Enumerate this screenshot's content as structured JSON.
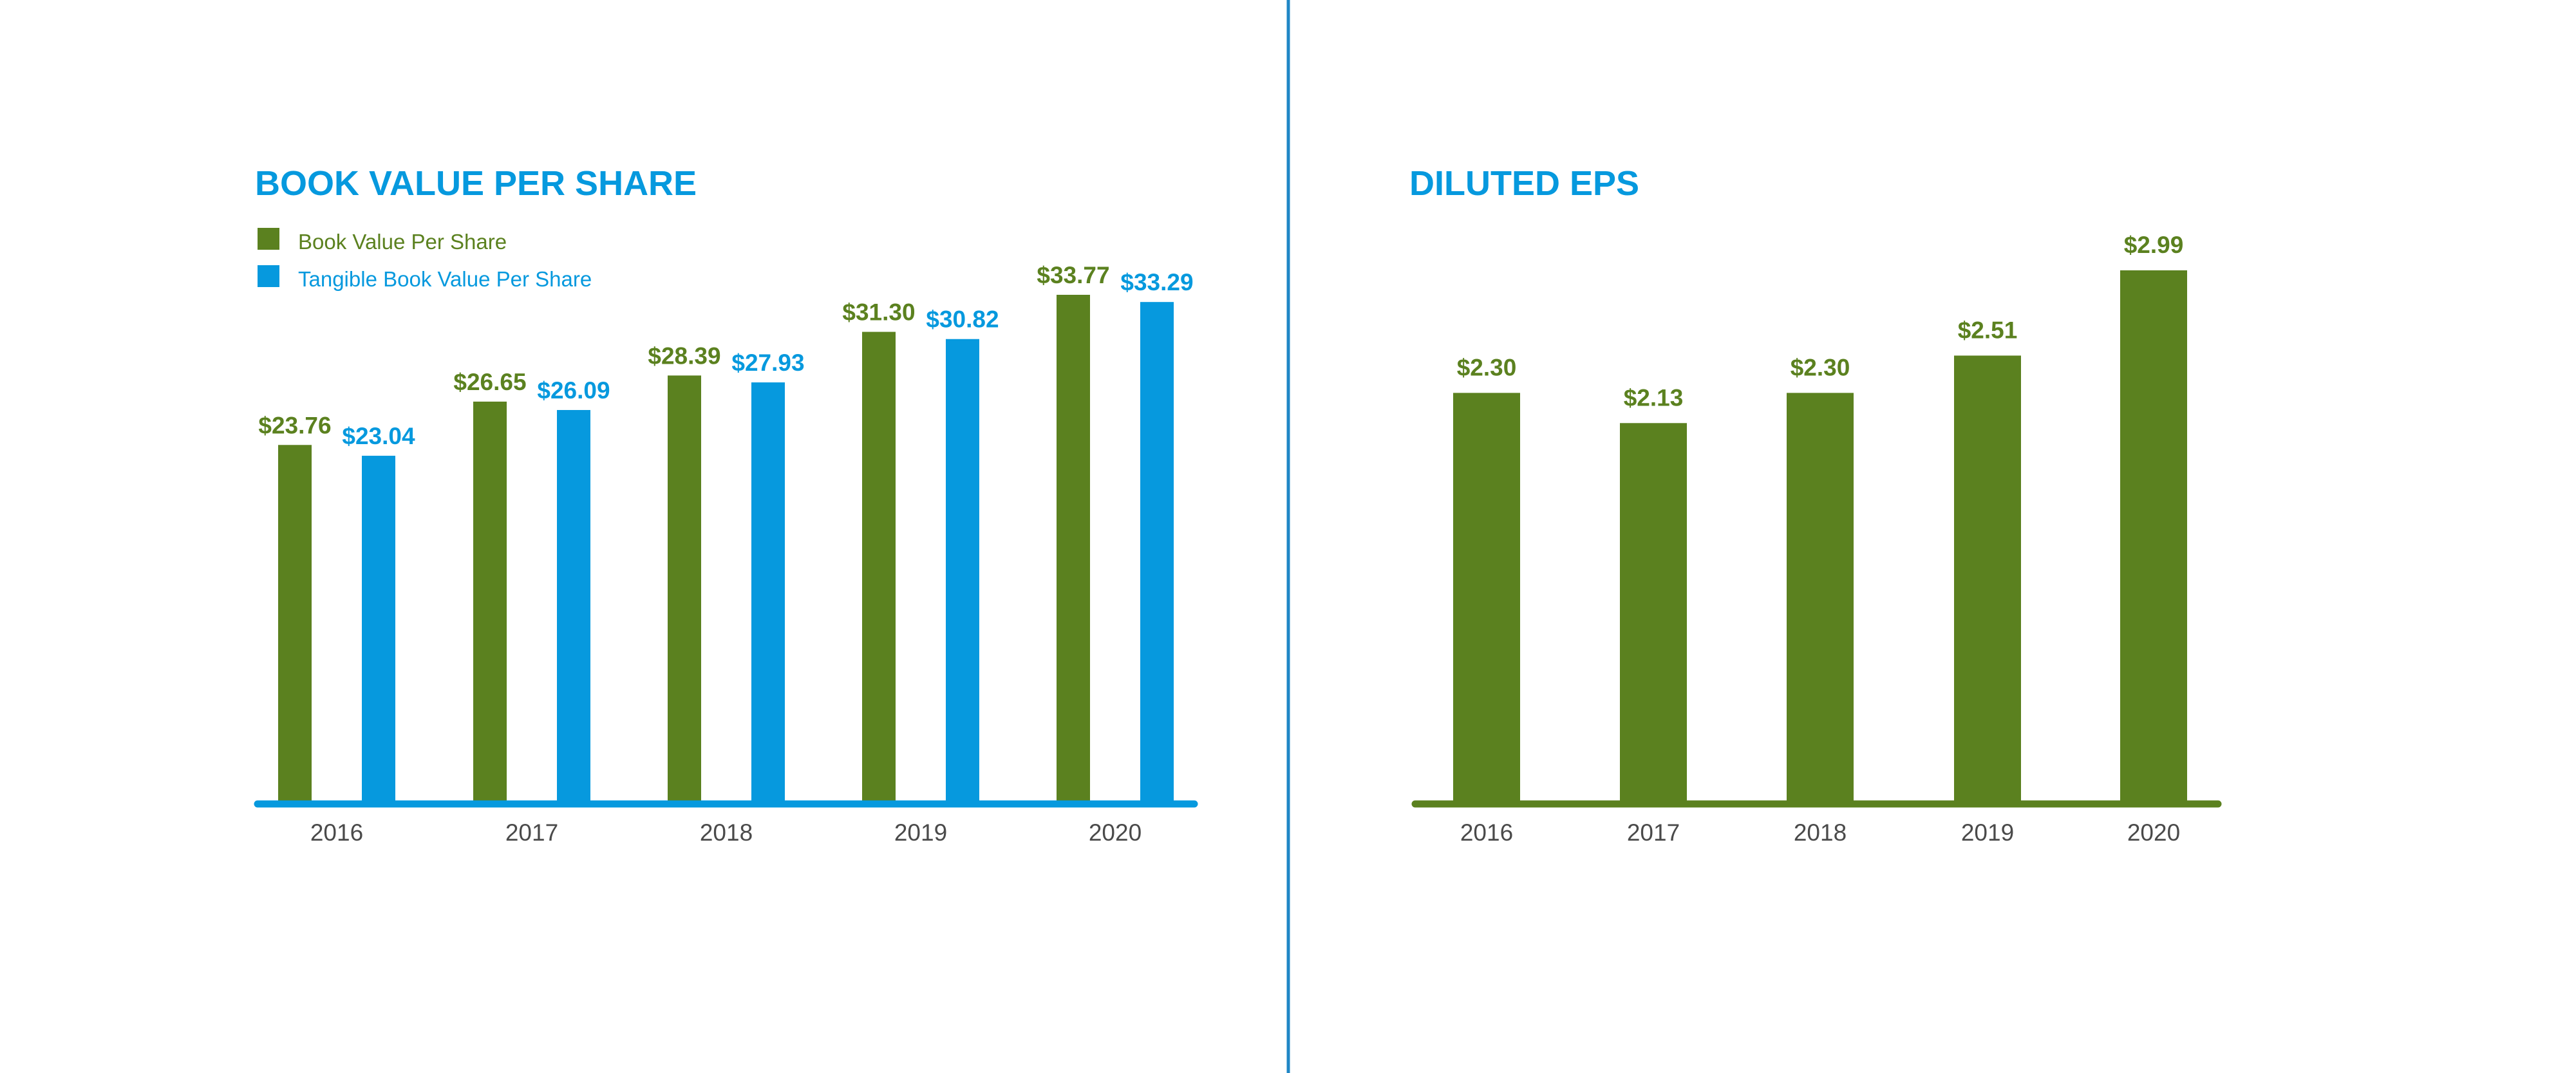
{
  "colors": {
    "green": "#5b811f",
    "blue": "#0699de",
    "divider": "#1f86c6",
    "tick_text": "#4a4a4a"
  },
  "chart_data": [
    {
      "type": "bar",
      "title": "BOOK VALUE PER SHARE",
      "categories": [
        "2016",
        "2017",
        "2018",
        "2019",
        "2020"
      ],
      "series": [
        {
          "name": "Book Value Per Share",
          "color": "#5b811f",
          "values": [
            23.76,
            26.65,
            28.39,
            31.3,
            33.77
          ],
          "labels": [
            "$23.76",
            "$26.65",
            "$28.39",
            "$31.30",
            "$33.77"
          ]
        },
        {
          "name": "Tangible Book Value Per Share",
          "color": "#0699de",
          "values": [
            23.04,
            26.09,
            27.93,
            30.82,
            33.29
          ],
          "labels": [
            "$23.04",
            "$26.09",
            "$27.93",
            "$30.82",
            "$33.29"
          ]
        }
      ],
      "ylim": [
        0,
        35
      ],
      "grid": false,
      "legend": "top-left",
      "xlabel": "",
      "ylabel": ""
    },
    {
      "type": "bar",
      "title": "DILUTED EPS",
      "categories": [
        "2016",
        "2017",
        "2018",
        "2019",
        "2020"
      ],
      "series": [
        {
          "color": "#5b811f",
          "values": [
            2.3,
            2.13,
            2.3,
            2.51,
            2.99
          ],
          "labels": [
            "$2.30",
            "$2.13",
            "$2.30",
            "$2.51",
            "$2.99"
          ]
        }
      ],
      "ylim": [
        0,
        3.05
      ],
      "grid": false,
      "legend": "none",
      "xlabel": "",
      "ylabel": ""
    }
  ]
}
